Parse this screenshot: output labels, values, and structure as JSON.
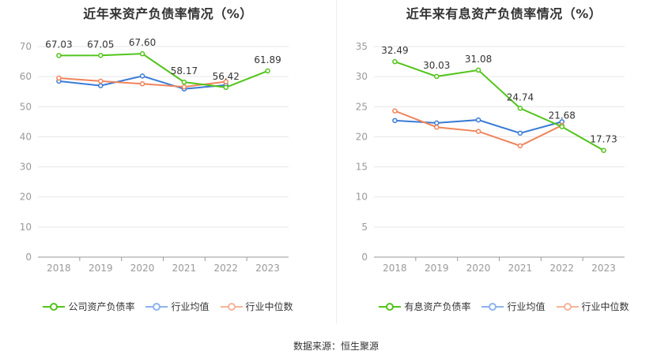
{
  "chart_data": [
    {
      "type": "line",
      "title": "近年来资产负债率情况（%）",
      "categories": [
        "2018",
        "2019",
        "2020",
        "2021",
        "2022",
        "2023"
      ],
      "ylim": [
        0,
        70
      ],
      "yticks": [
        0,
        10,
        20,
        30,
        40,
        50,
        60,
        70
      ],
      "grid": true,
      "legend_position": "bottom",
      "series": [
        {
          "name": "公司资产负债率",
          "values": [
            67.03,
            67.05,
            67.6,
            58.17,
            56.42,
            61.89
          ],
          "color": "#52c41a",
          "labels": [
            "67.03",
            "67.05",
            "67.60",
            "58.17",
            "56.42",
            "61.89"
          ]
        },
        {
          "name": "行业均值",
          "values": [
            58.5,
            57.0,
            60.2,
            55.9,
            57.2,
            null
          ],
          "color": "#3a7bd5"
        },
        {
          "name": "行业中位数",
          "values": [
            59.5,
            58.5,
            57.6,
            56.6,
            58.3,
            null
          ],
          "color": "#f0845c"
        }
      ]
    },
    {
      "type": "line",
      "title": "近年来有息资产负债率情况（%）",
      "categories": [
        "2018",
        "2019",
        "2020",
        "2021",
        "2022",
        "2023"
      ],
      "ylim": [
        0,
        35
      ],
      "yticks": [
        0,
        5,
        10,
        15,
        20,
        25,
        30,
        35
      ],
      "grid": true,
      "legend_position": "bottom",
      "series": [
        {
          "name": "有息资产负债率",
          "values": [
            32.49,
            30.03,
            31.08,
            24.74,
            21.68,
            17.73
          ],
          "color": "#52c41a",
          "labels": [
            "32.49",
            "30.03",
            "31.08",
            "24.74",
            "21.68",
            "17.73"
          ]
        },
        {
          "name": "行业均值",
          "values": [
            22.7,
            22.3,
            22.8,
            20.6,
            22.5,
            null
          ],
          "color": "#3a7bd5"
        },
        {
          "name": "行业中位数",
          "values": [
            24.3,
            21.6,
            20.9,
            18.5,
            21.9,
            null
          ],
          "color": "#f0845c"
        }
      ]
    }
  ],
  "source_text": "数据来源：恒生聚源",
  "legend_colors": {
    "company": "#52c41a",
    "avg": "#8bb4ee",
    "median": "#f5b49a"
  }
}
